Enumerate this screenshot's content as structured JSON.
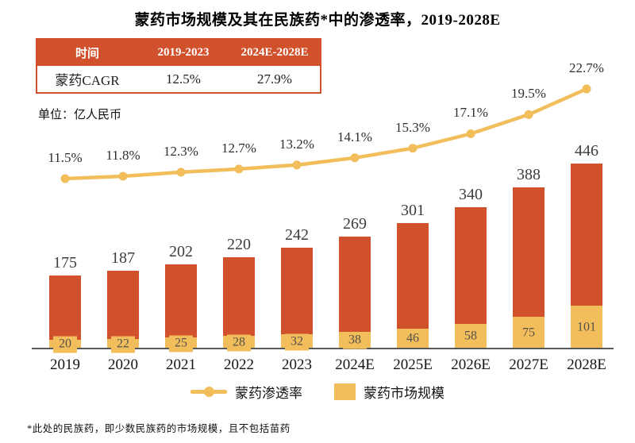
{
  "title": "蒙药市场规模及其在民族药*中的渗透率，2019-2028E",
  "cagr_table": {
    "headers": [
      "时间",
      "2019-2023",
      "2024E-2028E"
    ],
    "row": {
      "label": "蒙药CAGR",
      "values": [
        "12.5%",
        "27.9%"
      ]
    }
  },
  "unit_label": "单位：亿人民币",
  "chart_data": {
    "type": "stacked-bar+line",
    "categories": [
      "2019",
      "2020",
      "2021",
      "2022",
      "2023",
      "2024E",
      "2025E",
      "2026E",
      "2027E",
      "2028E"
    ],
    "bar_total_values": [
      175,
      187,
      202,
      220,
      242,
      269,
      301,
      340,
      388,
      446
    ],
    "series": [
      {
        "name": "蒙药市场规模",
        "type": "bar",
        "color": "#F2BE5B",
        "values": [
          20,
          22,
          25,
          28,
          32,
          38,
          46,
          58,
          75,
          101
        ]
      },
      {
        "name": "蒙药渗透率",
        "type": "line",
        "color": "#F2BE5B",
        "unit": "%",
        "values": [
          11.5,
          11.8,
          12.3,
          12.7,
          13.2,
          14.1,
          15.3,
          17.1,
          19.5,
          22.7
        ]
      }
    ],
    "bar_top_color": "#D0512C",
    "bar_bottom_color": "#F2BE5B",
    "line_color": "#F2BE5B",
    "axis_color": "#58595B",
    "grid": false,
    "legend_position": "bottom",
    "value_labels_shown": true
  },
  "legend": {
    "line_label": "蒙药渗透率",
    "bar_label": "蒙药市场规模"
  },
  "footnote": "*此处的民族药，即少数民族药的市场规模，且不包括苗药"
}
